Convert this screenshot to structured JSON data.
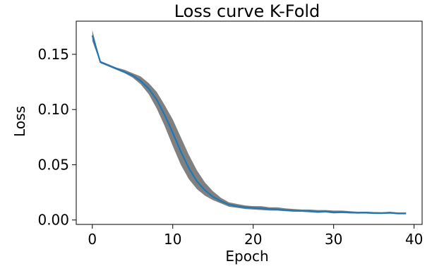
{
  "chart_data": {
    "type": "line",
    "title": "Loss curve K-Fold",
    "xlabel": "Epoch",
    "ylabel": "Loss",
    "xlim": [
      -2,
      41
    ],
    "ylim": [
      -0.004,
      0.18
    ],
    "xticks": [
      0,
      10,
      20,
      30,
      40
    ],
    "yticks": [
      0.0,
      0.05,
      0.1,
      0.15
    ],
    "xtick_labels": [
      "0",
      "10",
      "20",
      "30",
      "40"
    ],
    "ytick_labels": [
      "0.00",
      "0.05",
      "0.10",
      "0.15"
    ],
    "grid": false,
    "colors": {
      "line": "#1f77b4",
      "band": "#808080",
      "axes": "#000000"
    },
    "series": [
      {
        "x": [
          0,
          1,
          2,
          3,
          4,
          5,
          6,
          7,
          8,
          9,
          10,
          11,
          12,
          13,
          14,
          15,
          16,
          17,
          18,
          19,
          20,
          21,
          22,
          23,
          24,
          25,
          26,
          27,
          28,
          29,
          30,
          31,
          32,
          33,
          34,
          35,
          36,
          37,
          38,
          39
        ],
        "mean": [
          0.167,
          0.143,
          0.14,
          0.137,
          0.134,
          0.131,
          0.126,
          0.119,
          0.109,
          0.095,
          0.079,
          0.062,
          0.047,
          0.035,
          0.027,
          0.021,
          0.017,
          0.014,
          0.0125,
          0.0115,
          0.011,
          0.0105,
          0.01,
          0.0095,
          0.009,
          0.0085,
          0.0082,
          0.008,
          0.0075,
          0.0078,
          0.007,
          0.0072,
          0.0068,
          0.0065,
          0.0068,
          0.0063,
          0.0062,
          0.0065,
          0.006,
          0.006
        ],
        "lower": [
          0.162,
          0.142,
          0.139,
          0.136,
          0.133,
          0.129,
          0.123,
          0.114,
          0.101,
          0.085,
          0.067,
          0.05,
          0.037,
          0.028,
          0.022,
          0.018,
          0.015,
          0.012,
          0.011,
          0.01,
          0.0095,
          0.009,
          0.0085,
          0.0085,
          0.008,
          0.0075,
          0.0075,
          0.007,
          0.0065,
          0.0068,
          0.006,
          0.0062,
          0.006,
          0.0058,
          0.0058,
          0.0055,
          0.0055,
          0.0058,
          0.0052,
          0.0052
        ],
        "upper": [
          0.172,
          0.144,
          0.141,
          0.138,
          0.136,
          0.133,
          0.13,
          0.124,
          0.116,
          0.104,
          0.091,
          0.075,
          0.059,
          0.045,
          0.034,
          0.026,
          0.02,
          0.016,
          0.0145,
          0.0132,
          0.0125,
          0.0125,
          0.0115,
          0.0115,
          0.0105,
          0.01,
          0.0095,
          0.0095,
          0.009,
          0.009,
          0.0085,
          0.0085,
          0.008,
          0.0075,
          0.0075,
          0.0072,
          0.007,
          0.0075,
          0.0068,
          0.0068
        ]
      }
    ]
  }
}
